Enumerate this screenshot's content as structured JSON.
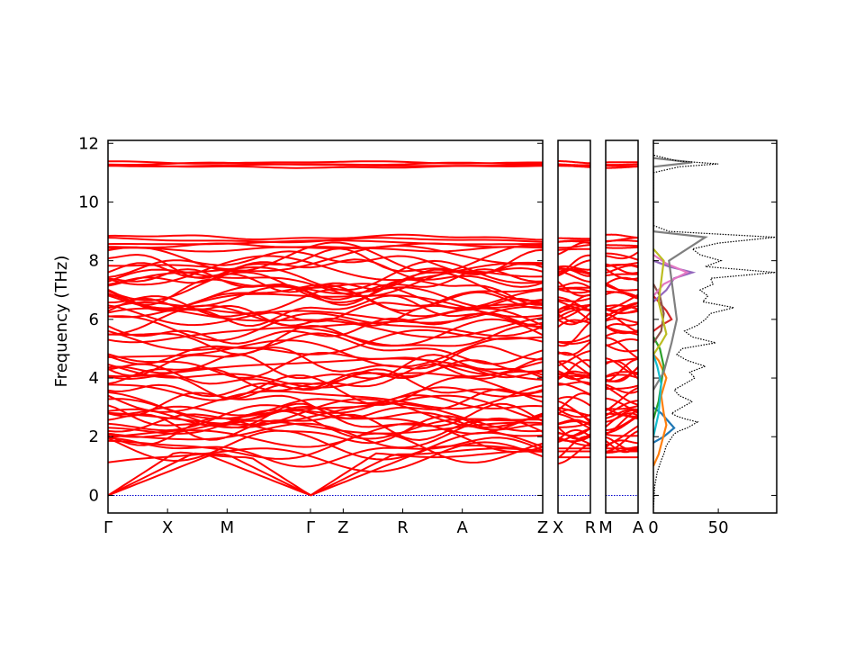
{
  "chart_data": {
    "type": "line",
    "title": "",
    "ylabel": "Frequency (THz)",
    "ylim": [
      -0.6,
      12.1
    ],
    "yticks": [
      0,
      2,
      4,
      6,
      8,
      10,
      12
    ],
    "grid": false,
    "band_line_color": "#ff0000",
    "zero_line_color": "#0000cc",
    "panels": [
      {
        "name": "band-segment-1",
        "path_labels": [
          "Γ",
          "X",
          "M",
          "Γ",
          "Z",
          "R",
          "A",
          "Z"
        ],
        "path_positions": [
          0,
          1,
          2,
          3.4,
          3.95,
          4.95,
          5.95,
          7.3
        ]
      },
      {
        "name": "band-segment-2",
        "path_labels": [
          "X",
          "R"
        ],
        "path_positions": [
          0,
          1
        ]
      },
      {
        "name": "band-segment-3",
        "path_labels": [
          "M",
          "A"
        ],
        "path_positions": [
          0,
          1
        ]
      }
    ],
    "band_frequency_groups_thz": [
      [
        0.0,
        0.0,
        0.0
      ],
      [
        1.3,
        2.4,
        1.6,
        2.6,
        1.7,
        1.5,
        2.0,
        2.1,
        2.3,
        2.4,
        2.6,
        2.7,
        2.8,
        3.0,
        3.1,
        3.2,
        3.3,
        2.9,
        2.5,
        2.2
      ],
      [
        3.6,
        3.8,
        3.9,
        4.0,
        4.1,
        4.2,
        4.3,
        4.4,
        4.5,
        4.6
      ],
      [
        4.9,
        5.0,
        5.2,
        5.3,
        5.5
      ],
      [
        5.7,
        5.8,
        5.9,
        6.0,
        6.1,
        6.2,
        6.3,
        6.4,
        6.5,
        6.6,
        6.7,
        6.8,
        6.9,
        7.0,
        7.1,
        7.2,
        7.3,
        7.4,
        7.5,
        7.6,
        7.7,
        7.8,
        7.9,
        8.0,
        8.1
      ],
      [
        8.4,
        8.5,
        8.6,
        8.7,
        8.8
      ],
      [
        11.2,
        11.25,
        11.3,
        11.35
      ]
    ],
    "dos": {
      "xlim": [
        0,
        95
      ],
      "xticks": [
        0,
        50
      ],
      "total_style": "dotted",
      "total_color": "#000000",
      "total": [
        [
          0,
          -0.5
        ],
        [
          1,
          0.3
        ],
        [
          3,
          0.8
        ],
        [
          6,
          1.2
        ],
        [
          8,
          1.4
        ],
        [
          10,
          1.7
        ],
        [
          13,
          1.9
        ],
        [
          16,
          2.1
        ],
        [
          20,
          2.2
        ],
        [
          26,
          2.3
        ],
        [
          34,
          2.5
        ],
        [
          25,
          2.6
        ],
        [
          18,
          2.7
        ],
        [
          14,
          2.8
        ],
        [
          22,
          3.0
        ],
        [
          30,
          3.2
        ],
        [
          20,
          3.4
        ],
        [
          16,
          3.6
        ],
        [
          24,
          3.8
        ],
        [
          32,
          4.0
        ],
        [
          28,
          4.2
        ],
        [
          40,
          4.4
        ],
        [
          26,
          4.6
        ],
        [
          18,
          4.8
        ],
        [
          22,
          5.0
        ],
        [
          48,
          5.2
        ],
        [
          30,
          5.4
        ],
        [
          24,
          5.6
        ],
        [
          34,
          5.8
        ],
        [
          40,
          6.0
        ],
        [
          44,
          6.2
        ],
        [
          62,
          6.4
        ],
        [
          38,
          6.6
        ],
        [
          42,
          6.8
        ],
        [
          36,
          7.0
        ],
        [
          46,
          7.2
        ],
        [
          44,
          7.4
        ],
        [
          94,
          7.6
        ],
        [
          40,
          7.8
        ],
        [
          52,
          8.0
        ],
        [
          36,
          8.2
        ],
        [
          30,
          8.4
        ],
        [
          50,
          8.6
        ],
        [
          94,
          8.8
        ],
        [
          12,
          9.0
        ],
        [
          0,
          9.2
        ],
        [
          0,
          11.0
        ],
        [
          20,
          11.2
        ],
        [
          50,
          11.3
        ],
        [
          18,
          11.4
        ],
        [
          0,
          11.6
        ],
        [
          0,
          12.1
        ]
      ],
      "partials": [
        {
          "color": "#1f77b4",
          "points": [
            [
              0,
              1.8
            ],
            [
              8,
              2.0
            ],
            [
              16,
              2.3
            ],
            [
              12,
              2.5
            ],
            [
              6,
              2.8
            ],
            [
              0,
              3.0
            ]
          ]
        },
        {
          "color": "#ff7f0e",
          "points": [
            [
              0,
              1.0
            ],
            [
              4,
              1.4
            ],
            [
              10,
              2.4
            ],
            [
              8,
              2.8
            ],
            [
              6,
              3.4
            ],
            [
              10,
              4.0
            ],
            [
              4,
              4.6
            ],
            [
              0,
              4.8
            ]
          ]
        },
        {
          "color": "#2ca02c",
          "points": [
            [
              0,
              2.6
            ],
            [
              4,
              3.2
            ],
            [
              8,
              4.4
            ],
            [
              5,
              5.0
            ],
            [
              0,
              5.4
            ]
          ]
        },
        {
          "color": "#d62728",
          "points": [
            [
              0,
              5.6
            ],
            [
              6,
              5.8
            ],
            [
              14,
              6.0
            ],
            [
              10,
              6.3
            ],
            [
              4,
              6.6
            ],
            [
              0,
              6.8
            ]
          ]
        },
        {
          "color": "#9467bd",
          "points": [
            [
              0,
              6.6
            ],
            [
              10,
              7.0
            ],
            [
              16,
              7.4
            ],
            [
              30,
              7.6
            ],
            [
              12,
              7.8
            ],
            [
              0,
              8.0
            ]
          ]
        },
        {
          "color": "#8c564b",
          "points": [
            [
              0,
              5.2
            ],
            [
              6,
              5.6
            ],
            [
              8,
              6.2
            ],
            [
              5,
              6.8
            ],
            [
              0,
              7.2
            ]
          ]
        },
        {
          "color": "#e377c2",
          "points": [
            [
              0,
              6.8
            ],
            [
              8,
              7.2
            ],
            [
              26,
              7.6
            ],
            [
              10,
              7.9
            ],
            [
              0,
              8.2
            ]
          ]
        },
        {
          "color": "#7f7f7f",
          "points": [
            [
              0,
              3.6
            ],
            [
              8,
              4.2
            ],
            [
              14,
              5.2
            ],
            [
              18,
              6.0
            ],
            [
              12,
              8.0
            ],
            [
              40,
              8.8
            ],
            [
              0,
              9.0
            ],
            [
              0,
              11.2
            ],
            [
              20,
              11.3
            ],
            [
              30,
              11.35
            ],
            [
              0,
              11.5
            ]
          ]
        },
        {
          "color": "#bcbd22",
          "points": [
            [
              0,
              4.8
            ],
            [
              6,
              5.2
            ],
            [
              10,
              5.5
            ],
            [
              4,
              6.6
            ],
            [
              8,
              8.0
            ],
            [
              0,
              8.4
            ]
          ]
        },
        {
          "color": "#17becf",
          "points": [
            [
              0,
              2.0
            ],
            [
              4,
              2.8
            ],
            [
              6,
              3.8
            ],
            [
              3,
              4.4
            ],
            [
              0,
              4.8
            ]
          ]
        }
      ]
    }
  }
}
